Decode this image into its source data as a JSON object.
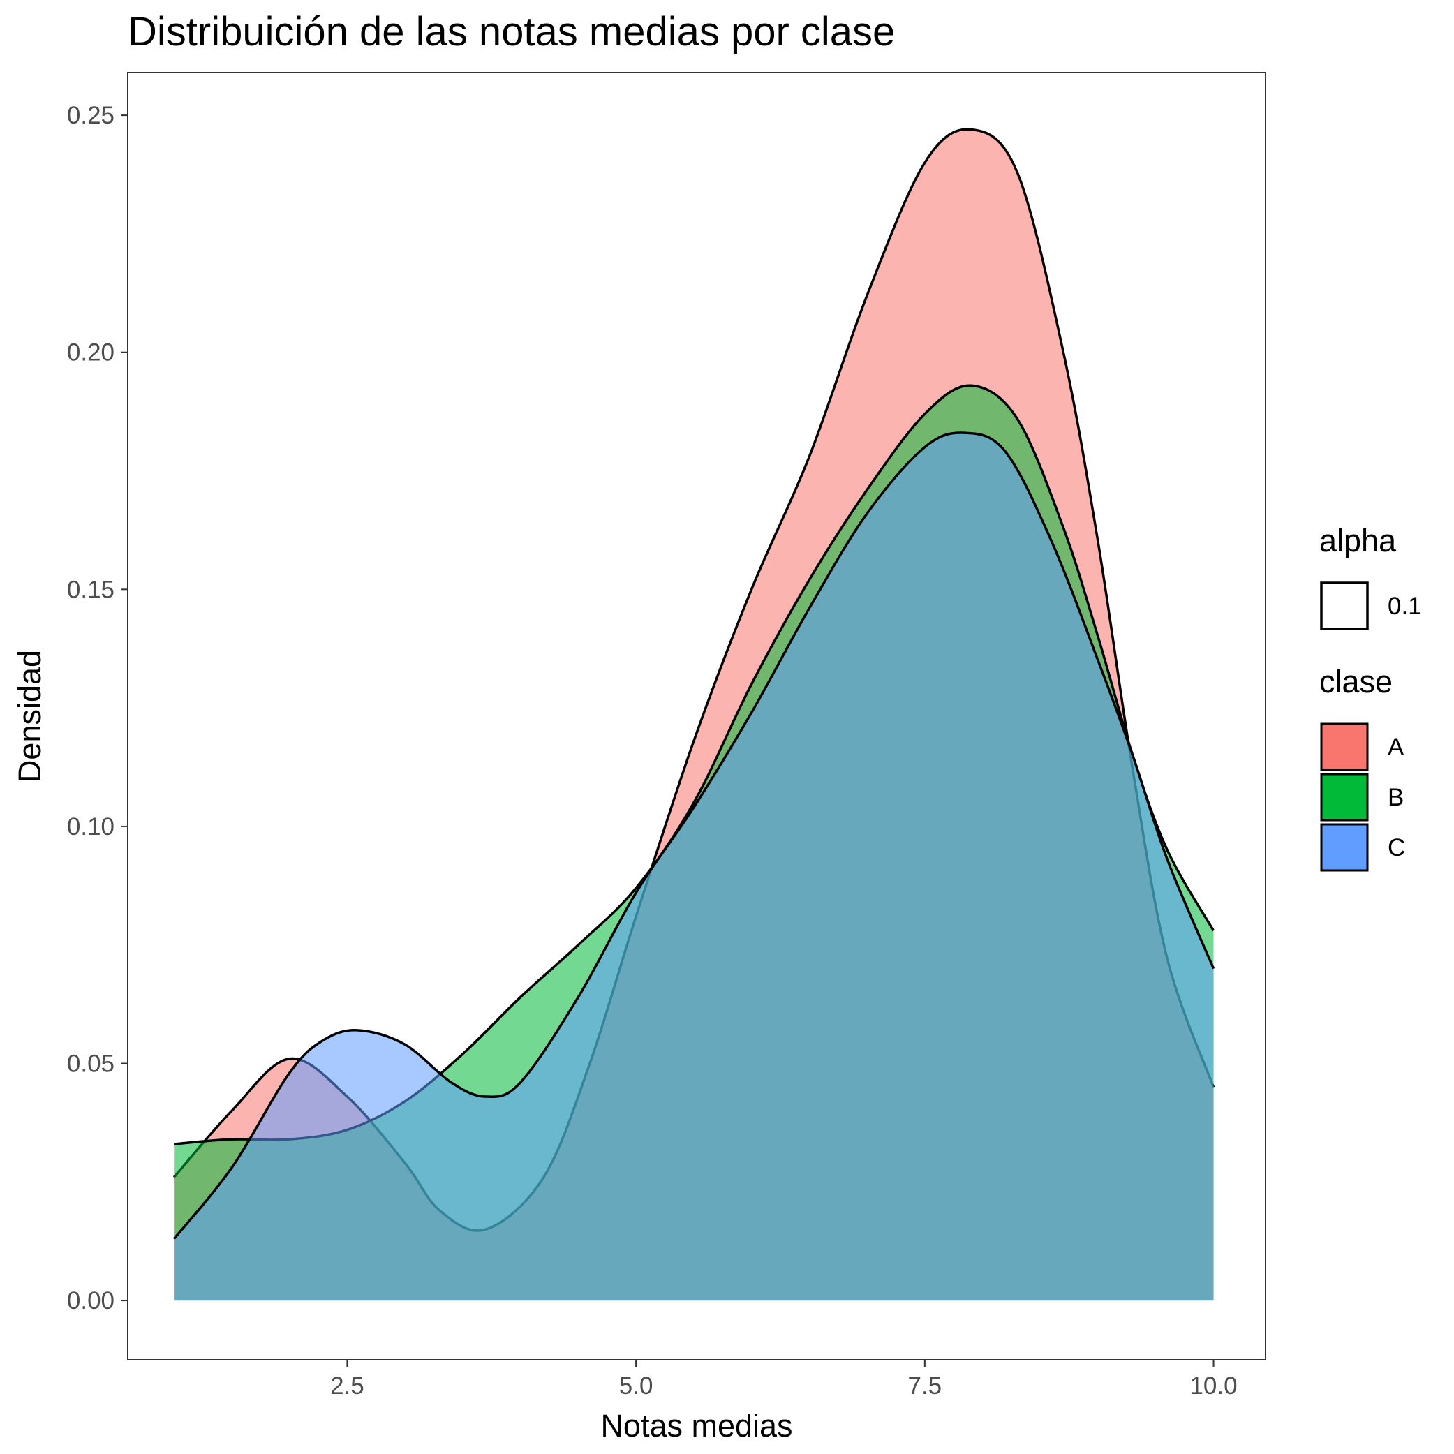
{
  "chart_data": {
    "type": "area",
    "subtype": "density",
    "title": "Distribuición de las notas medias por clase",
    "xlabel": "Notas medias",
    "ylabel": "Densidad",
    "xlim": [
      0.6,
      10.45
    ],
    "ylim": [
      -0.0125,
      0.259
    ],
    "x_ticks": [
      {
        "value": 2.5,
        "label": "2.5"
      },
      {
        "value": 5.0,
        "label": "5.0"
      },
      {
        "value": 7.5,
        "label": "7.5"
      },
      {
        "value": 10.0,
        "label": "10.0"
      }
    ],
    "y_ticks": [
      {
        "value": 0.0,
        "label": "0.00"
      },
      {
        "value": 0.05,
        "label": "0.05"
      },
      {
        "value": 0.1,
        "label": "0.10"
      },
      {
        "value": 0.15,
        "label": "0.15"
      },
      {
        "value": 0.2,
        "label": "0.20"
      },
      {
        "value": 0.25,
        "label": "0.25"
      }
    ],
    "grid": false,
    "fill_opacity": 0.55,
    "series": [
      {
        "name": "A",
        "color": "#F8766D",
        "points": [
          [
            1.0,
            0.026
          ],
          [
            1.5,
            0.04
          ],
          [
            2.0,
            0.051
          ],
          [
            2.5,
            0.043
          ],
          [
            3.0,
            0.029
          ],
          [
            3.3,
            0.019
          ],
          [
            3.7,
            0.015
          ],
          [
            4.2,
            0.026
          ],
          [
            4.6,
            0.05
          ],
          [
            5.0,
            0.081
          ],
          [
            5.5,
            0.118
          ],
          [
            6.0,
            0.15
          ],
          [
            6.5,
            0.178
          ],
          [
            7.0,
            0.212
          ],
          [
            7.5,
            0.24
          ],
          [
            7.9,
            0.247
          ],
          [
            8.3,
            0.238
          ],
          [
            8.7,
            0.2
          ],
          [
            9.0,
            0.16
          ],
          [
            9.3,
            0.112
          ],
          [
            9.6,
            0.072
          ],
          [
            10.0,
            0.045
          ]
        ]
      },
      {
        "name": "B",
        "color": "#00BA38",
        "points": [
          [
            1.0,
            0.033
          ],
          [
            1.5,
            0.034
          ],
          [
            2.0,
            0.034
          ],
          [
            2.5,
            0.036
          ],
          [
            3.0,
            0.042
          ],
          [
            3.5,
            0.052
          ],
          [
            4.0,
            0.064
          ],
          [
            4.5,
            0.075
          ],
          [
            5.0,
            0.087
          ],
          [
            5.5,
            0.105
          ],
          [
            6.0,
            0.13
          ],
          [
            6.5,
            0.152
          ],
          [
            7.0,
            0.171
          ],
          [
            7.5,
            0.187
          ],
          [
            7.9,
            0.193
          ],
          [
            8.3,
            0.186
          ],
          [
            8.7,
            0.163
          ],
          [
            9.0,
            0.14
          ],
          [
            9.3,
            0.115
          ],
          [
            9.6,
            0.095
          ],
          [
            10.0,
            0.078
          ]
        ]
      },
      {
        "name": "C",
        "color": "#619CFF",
        "points": [
          [
            1.0,
            0.013
          ],
          [
            1.5,
            0.028
          ],
          [
            2.0,
            0.048
          ],
          [
            2.3,
            0.055
          ],
          [
            2.6,
            0.057
          ],
          [
            3.0,
            0.054
          ],
          [
            3.4,
            0.046
          ],
          [
            3.7,
            0.043
          ],
          [
            4.0,
            0.046
          ],
          [
            4.5,
            0.064
          ],
          [
            5.0,
            0.086
          ],
          [
            5.5,
            0.104
          ],
          [
            6.0,
            0.124
          ],
          [
            6.5,
            0.146
          ],
          [
            7.0,
            0.166
          ],
          [
            7.5,
            0.18
          ],
          [
            7.85,
            0.183
          ],
          [
            8.2,
            0.179
          ],
          [
            8.6,
            0.16
          ],
          [
            9.0,
            0.135
          ],
          [
            9.3,
            0.115
          ],
          [
            9.6,
            0.093
          ],
          [
            10.0,
            0.07
          ]
        ]
      }
    ],
    "legends": [
      {
        "title": "alpha",
        "items": [
          {
            "label": "0.1",
            "color": "#ffffff"
          }
        ]
      },
      {
        "title": "clase",
        "items": [
          {
            "label": "A",
            "color": "#F8766D"
          },
          {
            "label": "B",
            "color": "#00BA38"
          },
          {
            "label": "C",
            "color": "#619CFF"
          }
        ]
      }
    ],
    "legend_position": "right"
  }
}
